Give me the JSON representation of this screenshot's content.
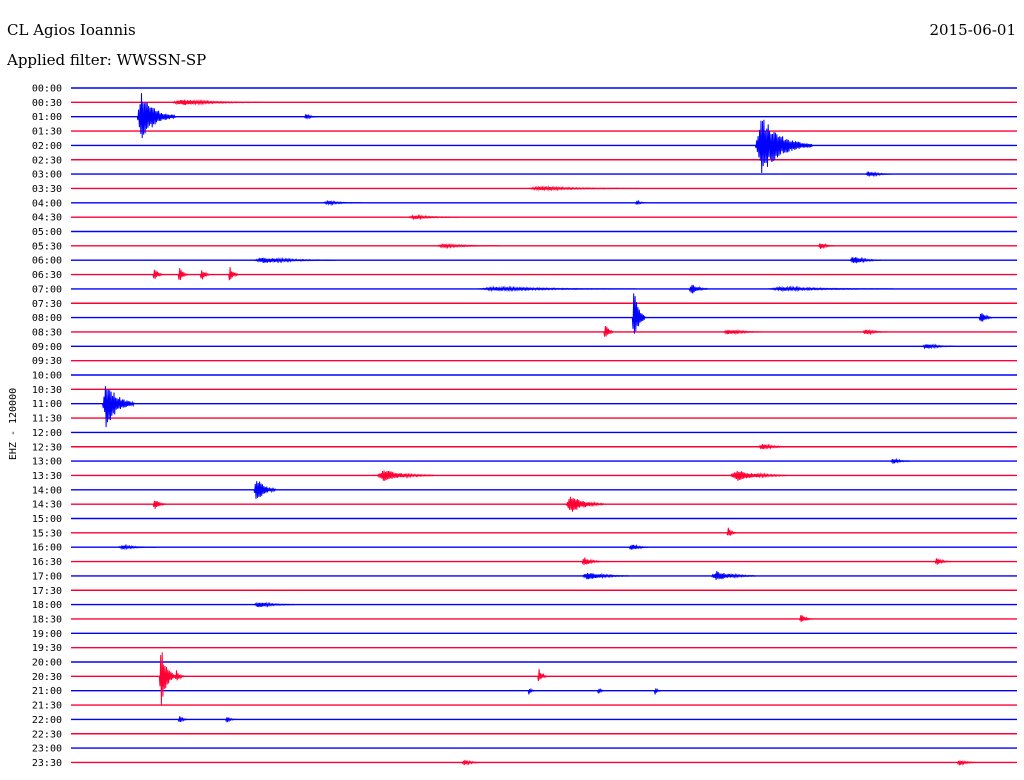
{
  "header": {
    "station": "CL Agios Ioannis",
    "date": "2015-06-01",
    "filter": "Applied filter: WWSSN-SP"
  },
  "chart_data": {
    "type": "line",
    "title": "CL Agios Ioannis",
    "ylabel": "EHZ - 120000",
    "ticks": [
      "00:00",
      "00:30",
      "01:00",
      "01:30",
      "02:00",
      "02:30",
      "03:00",
      "03:30",
      "04:00",
      "04:30",
      "05:00",
      "05:30",
      "06:00",
      "06:30",
      "07:00",
      "07:30",
      "08:00",
      "08:30",
      "09:00",
      "09:30",
      "10:00",
      "10:30",
      "11:00",
      "11:30",
      "12:00",
      "12:30",
      "13:00",
      "13:30",
      "14:00",
      "14:30",
      "15:00",
      "15:30",
      "16:00",
      "16:30",
      "17:00",
      "17:30",
      "18:00",
      "18:30",
      "19:00",
      "19:30",
      "20:00",
      "20:30",
      "21:00",
      "21:30",
      "22:00",
      "22:30",
      "23:00",
      "23:30"
    ],
    "colors": [
      "#0000ff",
      "#ff0033"
    ],
    "x_unit": "minutes within each 30-minute trace",
    "events": [
      {
        "row": 1,
        "t": 3.2,
        "amp": 3,
        "dur": 2.8
      },
      {
        "row": 2,
        "t": 2.1,
        "amp": 26,
        "dur": 1.2
      },
      {
        "row": 2,
        "t": 7.4,
        "amp": 3,
        "dur": 0.4
      },
      {
        "row": 4,
        "t": 21.7,
        "amp": 30,
        "dur": 1.8
      },
      {
        "row": 6,
        "t": 25.2,
        "amp": 3,
        "dur": 0.8
      },
      {
        "row": 7,
        "t": 14.5,
        "amp": 2,
        "dur": 3.5
      },
      {
        "row": 8,
        "t": 8.0,
        "amp": 2,
        "dur": 1.2
      },
      {
        "row": 8,
        "t": 17.9,
        "amp": 3,
        "dur": 0.3
      },
      {
        "row": 9,
        "t": 10.7,
        "amp": 2,
        "dur": 1.6
      },
      {
        "row": 11,
        "t": 11.6,
        "amp": 2,
        "dur": 2.0
      },
      {
        "row": 11,
        "t": 23.7,
        "amp": 4,
        "dur": 0.5
      },
      {
        "row": 12,
        "t": 5.8,
        "amp": 3,
        "dur": 2.6
      },
      {
        "row": 12,
        "t": 24.7,
        "amp": 4,
        "dur": 1.0
      },
      {
        "row": 13,
        "t": 2.6,
        "amp": 9,
        "dur": 0.3
      },
      {
        "row": 13,
        "t": 3.4,
        "amp": 8,
        "dur": 0.3
      },
      {
        "row": 13,
        "t": 4.1,
        "amp": 7,
        "dur": 0.3
      },
      {
        "row": 13,
        "t": 5.0,
        "amp": 9,
        "dur": 0.3
      },
      {
        "row": 14,
        "t": 12.9,
        "amp": 2,
        "dur": 5.0
      },
      {
        "row": 14,
        "t": 19.6,
        "amp": 6,
        "dur": 0.6
      },
      {
        "row": 14,
        "t": 22.1,
        "amp": 2,
        "dur": 4.0
      },
      {
        "row": 16,
        "t": 17.8,
        "amp": 34,
        "dur": 0.4
      },
      {
        "row": 16,
        "t": 28.8,
        "amp": 7,
        "dur": 0.4
      },
      {
        "row": 17,
        "t": 16.9,
        "amp": 10,
        "dur": 0.3
      },
      {
        "row": 17,
        "t": 20.7,
        "amp": 3,
        "dur": 1.2
      },
      {
        "row": 17,
        "t": 25.1,
        "amp": 3,
        "dur": 0.8
      },
      {
        "row": 18,
        "t": 27.0,
        "amp": 3,
        "dur": 1.0
      },
      {
        "row": 22,
        "t": 1.0,
        "amp": 26,
        "dur": 1.0
      },
      {
        "row": 25,
        "t": 21.8,
        "amp": 3,
        "dur": 1.0
      },
      {
        "row": 26,
        "t": 26.0,
        "amp": 3,
        "dur": 0.6
      },
      {
        "row": 27,
        "t": 9.7,
        "amp": 6,
        "dur": 1.8
      },
      {
        "row": 27,
        "t": 20.9,
        "amp": 6,
        "dur": 1.8
      },
      {
        "row": 28,
        "t": 5.8,
        "amp": 14,
        "dur": 0.7
      },
      {
        "row": 29,
        "t": 2.6,
        "amp": 6,
        "dur": 0.4
      },
      {
        "row": 29,
        "t": 15.7,
        "amp": 10,
        "dur": 1.2
      },
      {
        "row": 31,
        "t": 20.8,
        "amp": 6,
        "dur": 0.3
      },
      {
        "row": 32,
        "t": 1.5,
        "amp": 2,
        "dur": 1.2
      },
      {
        "row": 32,
        "t": 17.7,
        "amp": 4,
        "dur": 0.6
      },
      {
        "row": 33,
        "t": 16.2,
        "amp": 5,
        "dur": 0.6
      },
      {
        "row": 33,
        "t": 27.4,
        "amp": 4,
        "dur": 0.5
      },
      {
        "row": 34,
        "t": 16.2,
        "amp": 4,
        "dur": 1.5
      },
      {
        "row": 34,
        "t": 20.3,
        "amp": 5,
        "dur": 1.4
      },
      {
        "row": 36,
        "t": 5.8,
        "amp": 3,
        "dur": 1.3
      },
      {
        "row": 37,
        "t": 23.1,
        "amp": 5,
        "dur": 0.4
      },
      {
        "row": 41,
        "t": 2.8,
        "amp": 32,
        "dur": 0.5
      },
      {
        "row": 41,
        "t": 3.3,
        "amp": 7,
        "dur": 0.3
      },
      {
        "row": 41,
        "t": 14.8,
        "amp": 8,
        "dur": 0.3
      },
      {
        "row": 42,
        "t": 14.5,
        "amp": 4,
        "dur": 0.2
      },
      {
        "row": 42,
        "t": 16.7,
        "amp": 4,
        "dur": 0.2
      },
      {
        "row": 42,
        "t": 18.5,
        "amp": 4,
        "dur": 0.2
      },
      {
        "row": 44,
        "t": 3.4,
        "amp": 4,
        "dur": 0.3
      },
      {
        "row": 44,
        "t": 4.9,
        "amp": 4,
        "dur": 0.3
      },
      {
        "row": 47,
        "t": 12.4,
        "amp": 3,
        "dur": 0.6
      },
      {
        "row": 47,
        "t": 28.1,
        "amp": 3,
        "dur": 0.6
      }
    ]
  }
}
